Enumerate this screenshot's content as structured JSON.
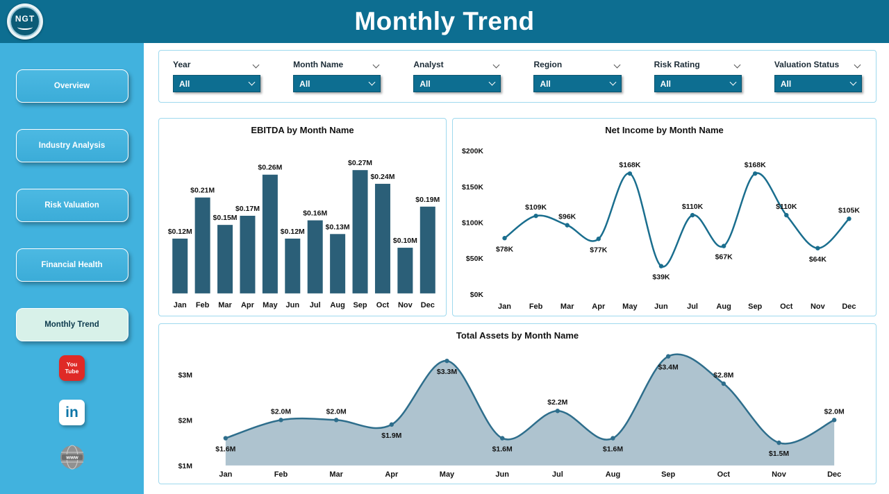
{
  "header": {
    "title": "Monthly Trend",
    "logo_text": "NGT"
  },
  "sidebar": {
    "items": [
      {
        "label": "Overview",
        "active": false
      },
      {
        "label": "Industry Analysis",
        "active": false
      },
      {
        "label": "Risk Valuation",
        "active": false
      },
      {
        "label": "Financial Health",
        "active": false
      },
      {
        "label": "Monthly Trend",
        "active": true
      }
    ],
    "social": [
      {
        "name": "youtube",
        "line1": "You",
        "line2": "Tube"
      },
      {
        "name": "linkedin",
        "text": "in"
      },
      {
        "name": "website",
        "text": "www"
      }
    ]
  },
  "filters": [
    {
      "label": "Year",
      "value": "All"
    },
    {
      "label": "Month Name",
      "value": "All"
    },
    {
      "label": "Analyst",
      "value": "All"
    },
    {
      "label": "Region",
      "value": "All"
    },
    {
      "label": "Risk Rating",
      "value": "All"
    },
    {
      "label": "Valuation Status",
      "value": "All"
    }
  ],
  "colors": {
    "header_bg": "#0D6E91",
    "sidebar_bg": "#41B2DE",
    "bar": "#2B5F78",
    "line": "#1A6E8E",
    "area_line": "#2E6E8C",
    "area_fill": "#AEC3CF",
    "dropdown_bg": "#0D6E91",
    "panel_border": "#9ED9EE",
    "active_nav_bg": "#D8F1E9"
  },
  "chart_data": [
    {
      "id": "ebitda",
      "type": "bar",
      "title": "EBITDA by Month Name",
      "categories": [
        "Jan",
        "Feb",
        "Mar",
        "Apr",
        "May",
        "Jun",
        "Jul",
        "Aug",
        "Sep",
        "Oct",
        "Nov",
        "Dec"
      ],
      "values": [
        0.12,
        0.21,
        0.15,
        0.17,
        0.26,
        0.12,
        0.16,
        0.13,
        0.27,
        0.24,
        0.1,
        0.19
      ],
      "labels": [
        "$0.12M",
        "$0.21M",
        "$0.15M",
        "$0.17M",
        "$0.26M",
        "$0.12M",
        "$0.16M",
        "$0.13M",
        "$0.27M",
        "$0.24M",
        "$0.10M",
        "$0.19M"
      ],
      "xlabel": "",
      "ylabel": "",
      "grid": false,
      "legend": "none"
    },
    {
      "id": "net_income",
      "type": "line",
      "title": "Net Income by Month Name",
      "categories": [
        "Jan",
        "Feb",
        "Mar",
        "Apr",
        "May",
        "Jun",
        "Jul",
        "Aug",
        "Sep",
        "Oct",
        "Nov",
        "Dec"
      ],
      "values": [
        78,
        109,
        96,
        77,
        168,
        39,
        110,
        67,
        168,
        110,
        64,
        105
      ],
      "labels": [
        "$78K",
        "$109K",
        "$96K",
        "$77K",
        "$168K",
        "$39K",
        "$110K",
        "$67K",
        "$168K",
        "$110K",
        "$64K",
        "$105K"
      ],
      "y_ticks": [
        "$0K",
        "$50K",
        "$100K",
        "$150K",
        "$200K"
      ],
      "y_tick_values": [
        0,
        50,
        100,
        150,
        200
      ],
      "ylim": [
        0,
        200
      ],
      "xlabel": "",
      "ylabel": "",
      "grid": false,
      "legend": "none"
    },
    {
      "id": "total_assets",
      "type": "area",
      "title": "Total Assets by Month Name",
      "categories": [
        "Jan",
        "Feb",
        "Mar",
        "Apr",
        "May",
        "Jun",
        "Jul",
        "Aug",
        "Sep",
        "Oct",
        "Nov",
        "Dec"
      ],
      "values": [
        1.6,
        2.0,
        2.0,
        1.9,
        3.3,
        1.6,
        2.2,
        1.6,
        3.4,
        2.8,
        1.5,
        2.0
      ],
      "labels": [
        "$1.6M",
        "$2.0M",
        "$2.0M",
        "$1.9M",
        "$3.3M",
        "$1.6M",
        "$2.2M",
        "$1.6M",
        "$3.4M",
        "$2.8M",
        "$1.5M",
        "$2.0M"
      ],
      "y_ticks": [
        "$1M",
        "$2M",
        "$3M"
      ],
      "y_tick_values": [
        1,
        2,
        3
      ],
      "ylim": [
        1,
        3.5
      ],
      "xlabel": "",
      "ylabel": "",
      "grid": false,
      "legend": "none"
    }
  ]
}
